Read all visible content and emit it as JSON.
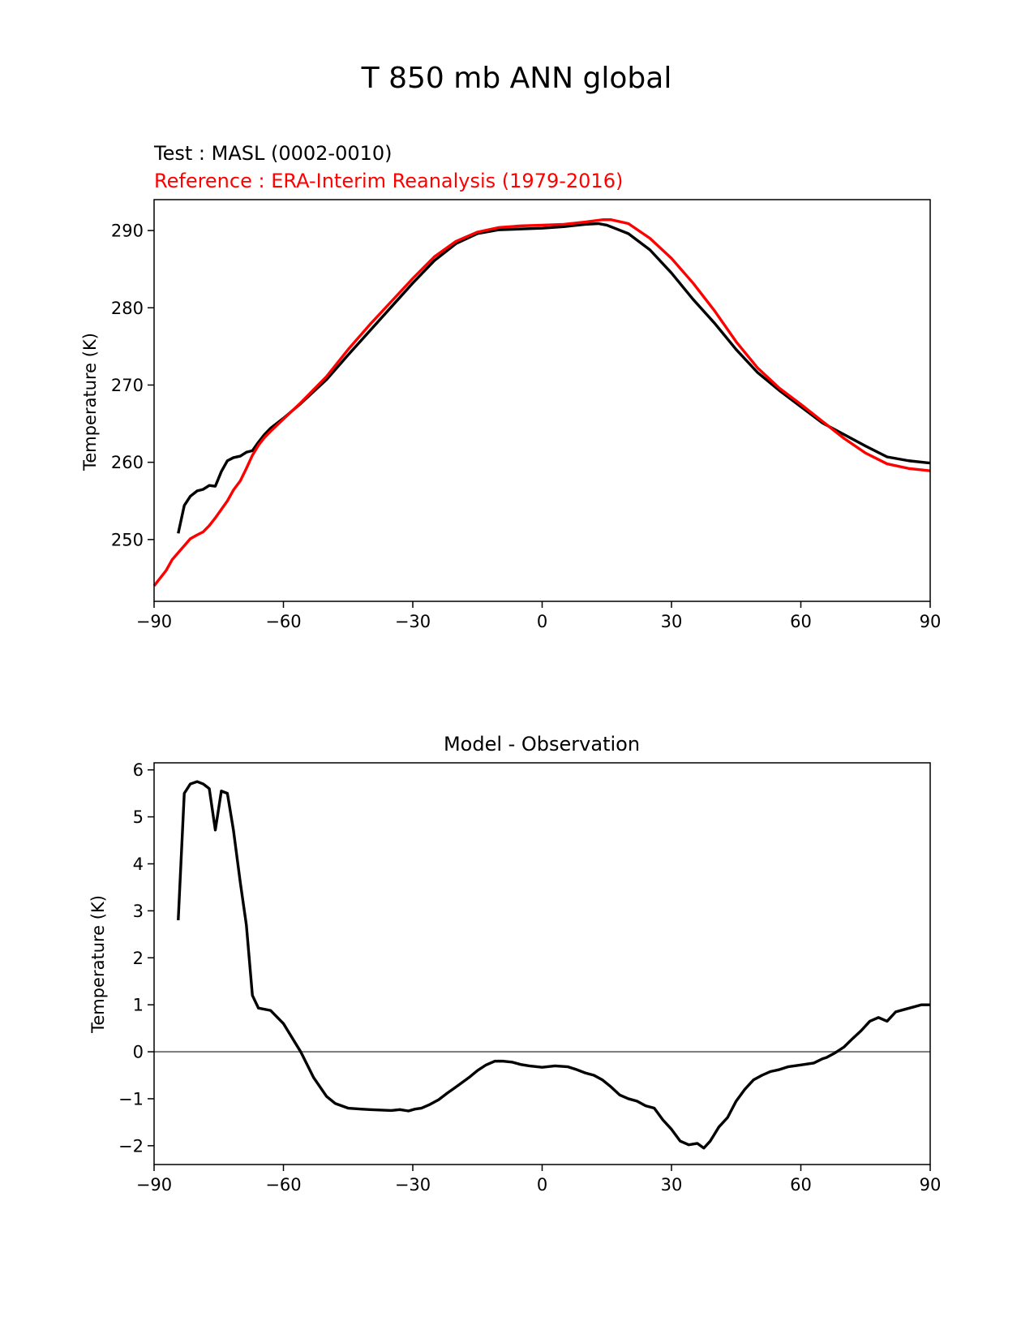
{
  "figure": {
    "title": "T 850 mb ANN global",
    "test_label": "Test : MASL (0002-0010)",
    "reference_label": "Reference : ERA-Interim Reanalysis (1979-2016)"
  },
  "colors": {
    "test": "#000000",
    "reference": "#ff0000",
    "zero_line": "#808080"
  },
  "chart_data": [
    {
      "type": "line",
      "title": "",
      "xlabel": "",
      "ylabel": "Temperature (K)",
      "xlim": [
        -90,
        90
      ],
      "ylim": [
        242,
        294
      ],
      "xticks": [
        -90,
        -60,
        -30,
        0,
        30,
        60,
        90
      ],
      "yticks": [
        250,
        260,
        270,
        280,
        290
      ],
      "grid": false,
      "series": [
        {
          "name": "Test : MASL (0002-0010)",
          "color": "#000000",
          "x": [
            -84.4,
            -83,
            -81.6,
            -80,
            -78.6,
            -77.2,
            -75.8,
            -74.4,
            -73,
            -71.6,
            -70,
            -68.6,
            -67.2,
            -65.8,
            -64.4,
            -63,
            -60,
            -56,
            -50,
            -45,
            -40,
            -35,
            -30,
            -25,
            -20,
            -15,
            -10,
            -5,
            0,
            5,
            10,
            13,
            15,
            20,
            25,
            30,
            35,
            40,
            45,
            50,
            55,
            60,
            65,
            70,
            75,
            80,
            85,
            90
          ],
          "y": [
            250.8,
            254.4,
            255.6,
            256.3,
            256.5,
            257.0,
            256.9,
            258.8,
            260.2,
            260.6,
            260.8,
            261.3,
            261.5,
            262.6,
            263.6,
            264.4,
            265.7,
            267.6,
            270.7,
            273.9,
            277.0,
            280.1,
            283.2,
            286.1,
            288.3,
            289.6,
            290.1,
            290.2,
            290.3,
            290.5,
            290.8,
            290.9,
            290.7,
            289.6,
            287.5,
            284.5,
            281.1,
            278.0,
            274.6,
            271.6,
            269.3,
            267.2,
            265.1,
            263.6,
            262.1,
            260.7,
            260.2,
            259.9
          ]
        },
        {
          "name": "Reference : ERA-Interim Reanalysis (1979-2016)",
          "color": "#ff0000",
          "x": [
            -90,
            -88.6,
            -87.2,
            -85.8,
            -84.4,
            -83,
            -81.6,
            -80,
            -78.6,
            -77.2,
            -75.8,
            -74.4,
            -73,
            -71.6,
            -70,
            -68.6,
            -67.2,
            -65.8,
            -64.4,
            -63,
            -60,
            -56,
            -50,
            -45,
            -40,
            -35,
            -30,
            -25,
            -20,
            -15,
            -10,
            -5,
            0,
            5,
            10,
            14,
            16,
            20,
            25,
            30,
            35,
            40,
            45,
            50,
            55,
            60,
            65,
            70,
            75,
            80,
            85,
            90
          ],
          "y": [
            244.0,
            245.0,
            246.0,
            247.4,
            248.3,
            249.2,
            250.1,
            250.6,
            251.0,
            251.8,
            252.8,
            253.9,
            255.0,
            256.4,
            257.6,
            259.2,
            260.9,
            262.2,
            263.2,
            264.0,
            265.6,
            267.7,
            271.1,
            274.6,
            277.8,
            280.8,
            283.8,
            286.6,
            288.6,
            289.8,
            290.4,
            290.6,
            290.7,
            290.8,
            291.1,
            291.4,
            291.4,
            290.9,
            289.0,
            286.4,
            283.2,
            279.6,
            275.6,
            272.2,
            269.6,
            267.5,
            265.3,
            263.1,
            261.2,
            259.8,
            259.2,
            258.9
          ]
        }
      ]
    },
    {
      "type": "line",
      "title": "Model - Observation",
      "xlabel": "",
      "ylabel": "Temperature (K)",
      "xlim": [
        -90,
        90
      ],
      "ylim": [
        -2.4,
        6.15
      ],
      "xticks": [
        -90,
        -60,
        -30,
        0,
        30,
        60,
        90
      ],
      "yticks": [
        -2,
        -1,
        0,
        1,
        2,
        3,
        4,
        5,
        6
      ],
      "grid": false,
      "zero_line": 0,
      "series": [
        {
          "color": "#000000",
          "x": [
            -84.4,
            -83,
            -81.6,
            -80,
            -78.6,
            -77.2,
            -75.8,
            -74.4,
            -73,
            -71.6,
            -70,
            -68.6,
            -67.2,
            -65.8,
            -63,
            -60,
            -56,
            -53,
            -50,
            -48,
            -45,
            -42,
            -40,
            -35,
            -33,
            -31,
            -29.5,
            -28,
            -26,
            -24,
            -22,
            -20,
            -17,
            -15,
            -13,
            -11,
            -9,
            -7,
            -5,
            -3,
            0,
            3,
            6,
            8,
            10,
            12,
            14,
            16,
            18,
            20,
            22,
            24,
            26,
            28,
            30,
            32,
            34,
            36,
            37.5,
            39,
            41,
            43,
            45,
            47,
            49,
            51,
            53,
            55,
            57,
            60,
            63,
            65,
            66,
            68,
            70,
            72,
            74,
            76,
            78,
            80,
            82,
            84,
            86,
            88,
            90
          ],
          "y": [
            2.8,
            5.5,
            5.7,
            5.75,
            5.7,
            5.6,
            4.72,
            5.55,
            5.5,
            4.72,
            3.6,
            2.7,
            1.2,
            0.93,
            0.88,
            0.6,
            0.0,
            -0.55,
            -0.95,
            -1.1,
            -1.2,
            -1.22,
            -1.23,
            -1.25,
            -1.23,
            -1.26,
            -1.22,
            -1.2,
            -1.12,
            -1.02,
            -0.88,
            -0.75,
            -0.55,
            -0.4,
            -0.28,
            -0.2,
            -0.2,
            -0.22,
            -0.27,
            -0.3,
            -0.33,
            -0.3,
            -0.32,
            -0.38,
            -0.45,
            -0.5,
            -0.6,
            -0.75,
            -0.92,
            -1.0,
            -1.05,
            -1.15,
            -1.2,
            -1.45,
            -1.65,
            -1.9,
            -1.98,
            -1.95,
            -2.05,
            -1.9,
            -1.6,
            -1.4,
            -1.05,
            -0.8,
            -0.6,
            -0.5,
            -0.42,
            -0.38,
            -0.32,
            -0.28,
            -0.24,
            -0.15,
            -0.12,
            -0.02,
            0.1,
            0.28,
            0.45,
            0.65,
            0.73,
            0.65,
            0.85,
            0.9,
            0.95,
            1.0,
            1.0
          ]
        }
      ]
    }
  ]
}
